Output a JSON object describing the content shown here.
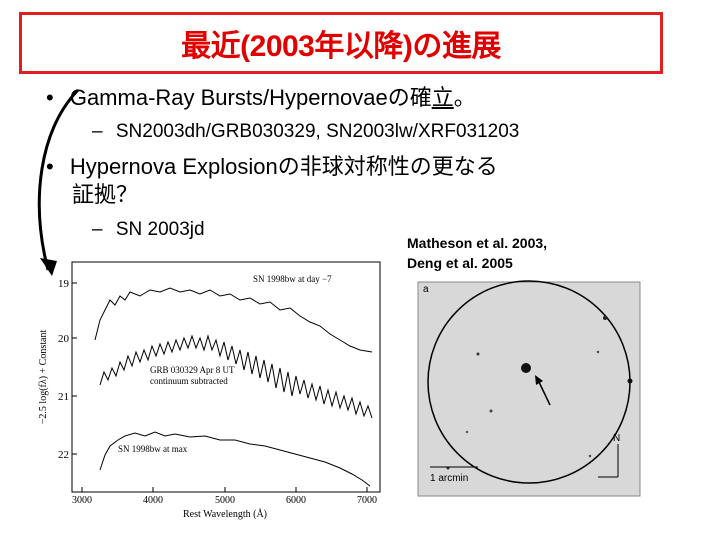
{
  "title": "最近(2003年以降)の進展",
  "bullets": [
    {
      "marker": "•",
      "text_before": "Gamma-Ray Bursts/Hypernovaeの確",
      "text_underlined": "立",
      "text_after": "。",
      "sub": {
        "marker": "–",
        "text": "SN2003dh/GRB030329, SN2003lw/XRF031203"
      }
    },
    {
      "marker": "•",
      "line1": "Hypernova Explosionの非球対称性の更なる",
      "line2": "証拠？",
      "sub": {
        "marker": "–",
        "text": "SN 2003jd"
      }
    }
  ],
  "citation": {
    "line1": "Matheson et al. 2003,",
    "line2": "Deng et al. 2005"
  },
  "spectrum_figure": {
    "ylabel": "−2.5 log(fλ) + Constant",
    "xlabel": "Rest Wavelength (Å)",
    "y_ticks": [
      "19",
      "20",
      "21",
      "22"
    ],
    "x_ticks": [
      "3000",
      "4000",
      "5000",
      "6000",
      "7000"
    ],
    "labels": {
      "top": "SN 1998bw at day −7",
      "middle_1": "GRB 030329  Apr 8 UT",
      "middle_2": "continuum subtracted",
      "bottom": "SN 1998bw at max"
    }
  },
  "image_figure": {
    "panel_label": "a",
    "north_label": "N",
    "scale_label": "1 arcmin"
  },
  "colors": {
    "title": "#e00000",
    "title_border": "#e02020",
    "text": "#000000"
  }
}
